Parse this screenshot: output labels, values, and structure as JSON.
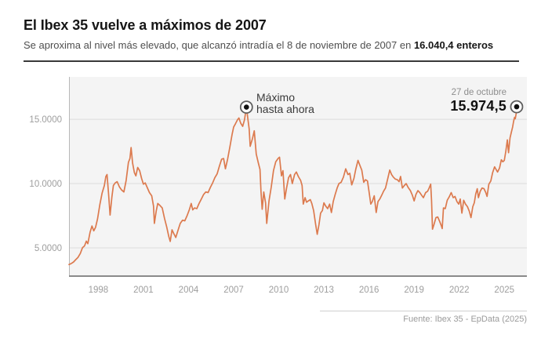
{
  "header": {
    "title": "El Ibex 35 vuelve a máximos de 2007",
    "subtitle_regular": "Se aproxima al nivel más elevado, que alcanzó intradía el 8 de noviembre de 2007 en",
    "subtitle_bold": "16.040,4 enteros"
  },
  "annotations": {
    "max_line1": "Máximo",
    "max_line2": "hasta ahora",
    "latest_date": "27 de octubre",
    "latest_value": "15.974,5"
  },
  "footer": {
    "source": "Fuente: Ibex 35 - EpData (2025)"
  },
  "colors": {
    "line": "#dc7a4e",
    "plot_bg": "#f4f4f4",
    "grid": "#dcdcdc",
    "axis_bottom": "#8a8a8a",
    "axis_left": "#b8b8b8",
    "tick_text": "#9e9e9e",
    "marker_ring": "#5f5f5f",
    "marker_dot": "#101010"
  },
  "chart_data": {
    "type": "line",
    "title": "El Ibex 35 vuelve a máximos de 2007",
    "series_name": "Ibex 35",
    "xlabel": "",
    "ylabel": "",
    "grid": "horizontal",
    "legend": "none",
    "xlim": [
      1996.05,
      2026.5
    ],
    "ylim": [
      2800,
      18300
    ],
    "y_ticks": [
      {
        "value": 5000,
        "label": "5.0000"
      },
      {
        "value": 10000,
        "label": "10.0000"
      },
      {
        "value": 15000,
        "label": "15.0000"
      }
    ],
    "x_ticks": [
      {
        "value": 1998,
        "label": "1998"
      },
      {
        "value": 2001,
        "label": "2001"
      },
      {
        "value": 2004,
        "label": "2004"
      },
      {
        "value": 2007,
        "label": "2007"
      },
      {
        "value": 2010,
        "label": "2010"
      },
      {
        "value": 2013,
        "label": "2013"
      },
      {
        "value": 2016,
        "label": "2016"
      },
      {
        "value": 2019,
        "label": "2019"
      },
      {
        "value": 2022,
        "label": "2022"
      },
      {
        "value": 2025,
        "label": "2025"
      }
    ],
    "markers": [
      {
        "x": 2007.85,
        "y": 15945,
        "note": "Máximo hasta ahora"
      },
      {
        "x": 2025.82,
        "y": 15974.5,
        "note": "27 de octubre 15.974,5"
      }
    ],
    "points": [
      [
        1996.05,
        3700
      ],
      [
        1996.2,
        3780
      ],
      [
        1996.35,
        3900
      ],
      [
        1996.5,
        4080
      ],
      [
        1996.65,
        4260
      ],
      [
        1996.8,
        4560
      ],
      [
        1996.95,
        5020
      ],
      [
        1997.08,
        5150
      ],
      [
        1997.2,
        5520
      ],
      [
        1997.3,
        5320
      ],
      [
        1997.45,
        6220
      ],
      [
        1997.58,
        6700
      ],
      [
        1997.7,
        6320
      ],
      [
        1997.82,
        6600
      ],
      [
        1997.95,
        7250
      ],
      [
        1998.1,
        8350
      ],
      [
        1998.25,
        9250
      ],
      [
        1998.4,
        9850
      ],
      [
        1998.5,
        10550
      ],
      [
        1998.58,
        10700
      ],
      [
        1998.68,
        9250
      ],
      [
        1998.78,
        7550
      ],
      [
        1998.9,
        8950
      ],
      [
        1999.0,
        9850
      ],
      [
        1999.12,
        10050
      ],
      [
        1999.25,
        10150
      ],
      [
        1999.4,
        9750
      ],
      [
        1999.55,
        9500
      ],
      [
        1999.7,
        9350
      ],
      [
        1999.85,
        10250
      ],
      [
        2000.0,
        11650
      ],
      [
        2000.1,
        11950
      ],
      [
        2000.18,
        12800
      ],
      [
        2000.28,
        11600
      ],
      [
        2000.4,
        10850
      ],
      [
        2000.5,
        10600
      ],
      [
        2000.62,
        11250
      ],
      [
        2000.75,
        11000
      ],
      [
        2000.88,
        10400
      ],
      [
        2001.0,
        9950
      ],
      [
        2001.12,
        10050
      ],
      [
        2001.25,
        9700
      ],
      [
        2001.4,
        9300
      ],
      [
        2001.55,
        9050
      ],
      [
        2001.67,
        8250
      ],
      [
        2001.73,
        6900
      ],
      [
        2001.85,
        7850
      ],
      [
        2001.95,
        8450
      ],
      [
        2002.1,
        8300
      ],
      [
        2002.25,
        8100
      ],
      [
        2002.4,
        7300
      ],
      [
        2002.55,
        6600
      ],
      [
        2002.68,
        5900
      ],
      [
        2002.78,
        5500
      ],
      [
        2002.9,
        6400
      ],
      [
        2003.02,
        6100
      ],
      [
        2003.15,
        5800
      ],
      [
        2003.3,
        6350
      ],
      [
        2003.45,
        6900
      ],
      [
        2003.6,
        7150
      ],
      [
        2003.75,
        7100
      ],
      [
        2003.9,
        7500
      ],
      [
        2004.05,
        7950
      ],
      [
        2004.18,
        8450
      ],
      [
        2004.28,
        7950
      ],
      [
        2004.4,
        8100
      ],
      [
        2004.55,
        8050
      ],
      [
        2004.7,
        8450
      ],
      [
        2004.85,
        8800
      ],
      [
        2005.0,
        9150
      ],
      [
        2005.15,
        9350
      ],
      [
        2005.3,
        9300
      ],
      [
        2005.45,
        9700
      ],
      [
        2005.6,
        10050
      ],
      [
        2005.75,
        10450
      ],
      [
        2005.9,
        10750
      ],
      [
        2006.05,
        11350
      ],
      [
        2006.2,
        11900
      ],
      [
        2006.33,
        11950
      ],
      [
        2006.45,
        11150
      ],
      [
        2006.6,
        11900
      ],
      [
        2006.75,
        12850
      ],
      [
        2006.9,
        13850
      ],
      [
        2007.0,
        14400
      ],
      [
        2007.12,
        14650
      ],
      [
        2007.25,
        14950
      ],
      [
        2007.35,
        15100
      ],
      [
        2007.47,
        14700
      ],
      [
        2007.6,
        14450
      ],
      [
        2007.72,
        14950
      ],
      [
        2007.85,
        15945
      ],
      [
        2007.95,
        15000
      ],
      [
        2008.03,
        14250
      ],
      [
        2008.1,
        12900
      ],
      [
        2008.25,
        13500
      ],
      [
        2008.37,
        14100
      ],
      [
        2008.5,
        12300
      ],
      [
        2008.63,
        11650
      ],
      [
        2008.75,
        11100
      ],
      [
        2008.82,
        9350
      ],
      [
        2008.9,
        8000
      ],
      [
        2009.0,
        9350
      ],
      [
        2009.12,
        8500
      ],
      [
        2009.2,
        6900
      ],
      [
        2009.35,
        8650
      ],
      [
        2009.5,
        9750
      ],
      [
        2009.65,
        11000
      ],
      [
        2009.8,
        11700
      ],
      [
        2009.95,
        11950
      ],
      [
        2010.05,
        12050
      ],
      [
        2010.18,
        10600
      ],
      [
        2010.28,
        11000
      ],
      [
        2010.4,
        8800
      ],
      [
        2010.52,
        9650
      ],
      [
        2010.65,
        10450
      ],
      [
        2010.78,
        10700
      ],
      [
        2010.9,
        10000
      ],
      [
        2011.05,
        10700
      ],
      [
        2011.17,
        10900
      ],
      [
        2011.3,
        10550
      ],
      [
        2011.45,
        10250
      ],
      [
        2011.55,
        9850
      ],
      [
        2011.63,
        8400
      ],
      [
        2011.75,
        8900
      ],
      [
        2011.85,
        8550
      ],
      [
        2011.97,
        8650
      ],
      [
        2012.1,
        8750
      ],
      [
        2012.2,
        8450
      ],
      [
        2012.32,
        7900
      ],
      [
        2012.45,
        6850
      ],
      [
        2012.56,
        6050
      ],
      [
        2012.67,
        6800
      ],
      [
        2012.78,
        7700
      ],
      [
        2012.9,
        7900
      ],
      [
        2013.0,
        8500
      ],
      [
        2013.12,
        8250
      ],
      [
        2013.25,
        8050
      ],
      [
        2013.38,
        8400
      ],
      [
        2013.5,
        7750
      ],
      [
        2013.62,
        8600
      ],
      [
        2013.75,
        9150
      ],
      [
        2013.88,
        9650
      ],
      [
        2014.0,
        10000
      ],
      [
        2014.15,
        10100
      ],
      [
        2014.3,
        10500
      ],
      [
        2014.45,
        11150
      ],
      [
        2014.6,
        10700
      ],
      [
        2014.72,
        10800
      ],
      [
        2014.85,
        9900
      ],
      [
        2015.0,
        10400
      ],
      [
        2015.12,
        11100
      ],
      [
        2015.27,
        11800
      ],
      [
        2015.4,
        11400
      ],
      [
        2015.52,
        11050
      ],
      [
        2015.65,
        10100
      ],
      [
        2015.77,
        10300
      ],
      [
        2015.9,
        10200
      ],
      [
        2016.0,
        9400
      ],
      [
        2016.12,
        8400
      ],
      [
        2016.22,
        8600
      ],
      [
        2016.35,
        9050
      ],
      [
        2016.48,
        7750
      ],
      [
        2016.6,
        8600
      ],
      [
        2016.72,
        8800
      ],
      [
        2016.85,
        9100
      ],
      [
        2016.97,
        9400
      ],
      [
        2017.1,
        9650
      ],
      [
        2017.25,
        10400
      ],
      [
        2017.38,
        11050
      ],
      [
        2017.5,
        10700
      ],
      [
        2017.62,
        10500
      ],
      [
        2017.75,
        10350
      ],
      [
        2017.88,
        10300
      ],
      [
        2018.0,
        10150
      ],
      [
        2018.1,
        10550
      ],
      [
        2018.22,
        9650
      ],
      [
        2018.35,
        9850
      ],
      [
        2018.47,
        10000
      ],
      [
        2018.6,
        9700
      ],
      [
        2018.75,
        9450
      ],
      [
        2018.88,
        9100
      ],
      [
        2019.0,
        8650
      ],
      [
        2019.12,
        9150
      ],
      [
        2019.25,
        9450
      ],
      [
        2019.38,
        9300
      ],
      [
        2019.5,
        9100
      ],
      [
        2019.62,
        8900
      ],
      [
        2019.77,
        9300
      ],
      [
        2019.9,
        9400
      ],
      [
        2020.0,
        9650
      ],
      [
        2020.1,
        9950
      ],
      [
        2020.16,
        8700
      ],
      [
        2020.22,
        6450
      ],
      [
        2020.33,
        6850
      ],
      [
        2020.45,
        7350
      ],
      [
        2020.57,
        7400
      ],
      [
        2020.7,
        7050
      ],
      [
        2020.8,
        6750
      ],
      [
        2020.87,
        6500
      ],
      [
        2020.95,
        8100
      ],
      [
        2021.07,
        8050
      ],
      [
        2021.2,
        8700
      ],
      [
        2021.33,
        8950
      ],
      [
        2021.47,
        9300
      ],
      [
        2021.6,
        8900
      ],
      [
        2021.72,
        9000
      ],
      [
        2021.85,
        8600
      ],
      [
        2021.97,
        8400
      ],
      [
        2022.07,
        8800
      ],
      [
        2022.18,
        7700
      ],
      [
        2022.3,
        8700
      ],
      [
        2022.42,
        8400
      ],
      [
        2022.55,
        8200
      ],
      [
        2022.67,
        7850
      ],
      [
        2022.78,
        7350
      ],
      [
        2022.9,
        8200
      ],
      [
        2023.0,
        8500
      ],
      [
        2023.1,
        9200
      ],
      [
        2023.2,
        9600
      ],
      [
        2023.28,
        8900
      ],
      [
        2023.4,
        9400
      ],
      [
        2023.52,
        9650
      ],
      [
        2023.65,
        9600
      ],
      [
        2023.77,
        9300
      ],
      [
        2023.85,
        9000
      ],
      [
        2023.97,
        9950
      ],
      [
        2024.1,
        10200
      ],
      [
        2024.22,
        10850
      ],
      [
        2024.35,
        11300
      ],
      [
        2024.45,
        11100
      ],
      [
        2024.55,
        10900
      ],
      [
        2024.68,
        11200
      ],
      [
        2024.8,
        11850
      ],
      [
        2024.9,
        11700
      ],
      [
        2025.0,
        11800
      ],
      [
        2025.1,
        12500
      ],
      [
        2025.2,
        13400
      ],
      [
        2025.28,
        12400
      ],
      [
        2025.38,
        13550
      ],
      [
        2025.47,
        14000
      ],
      [
        2025.55,
        14400
      ],
      [
        2025.62,
        14850
      ],
      [
        2025.68,
        15150
      ],
      [
        2025.73,
        15050
      ],
      [
        2025.78,
        15400
      ],
      [
        2025.82,
        15974.5
      ]
    ]
  }
}
